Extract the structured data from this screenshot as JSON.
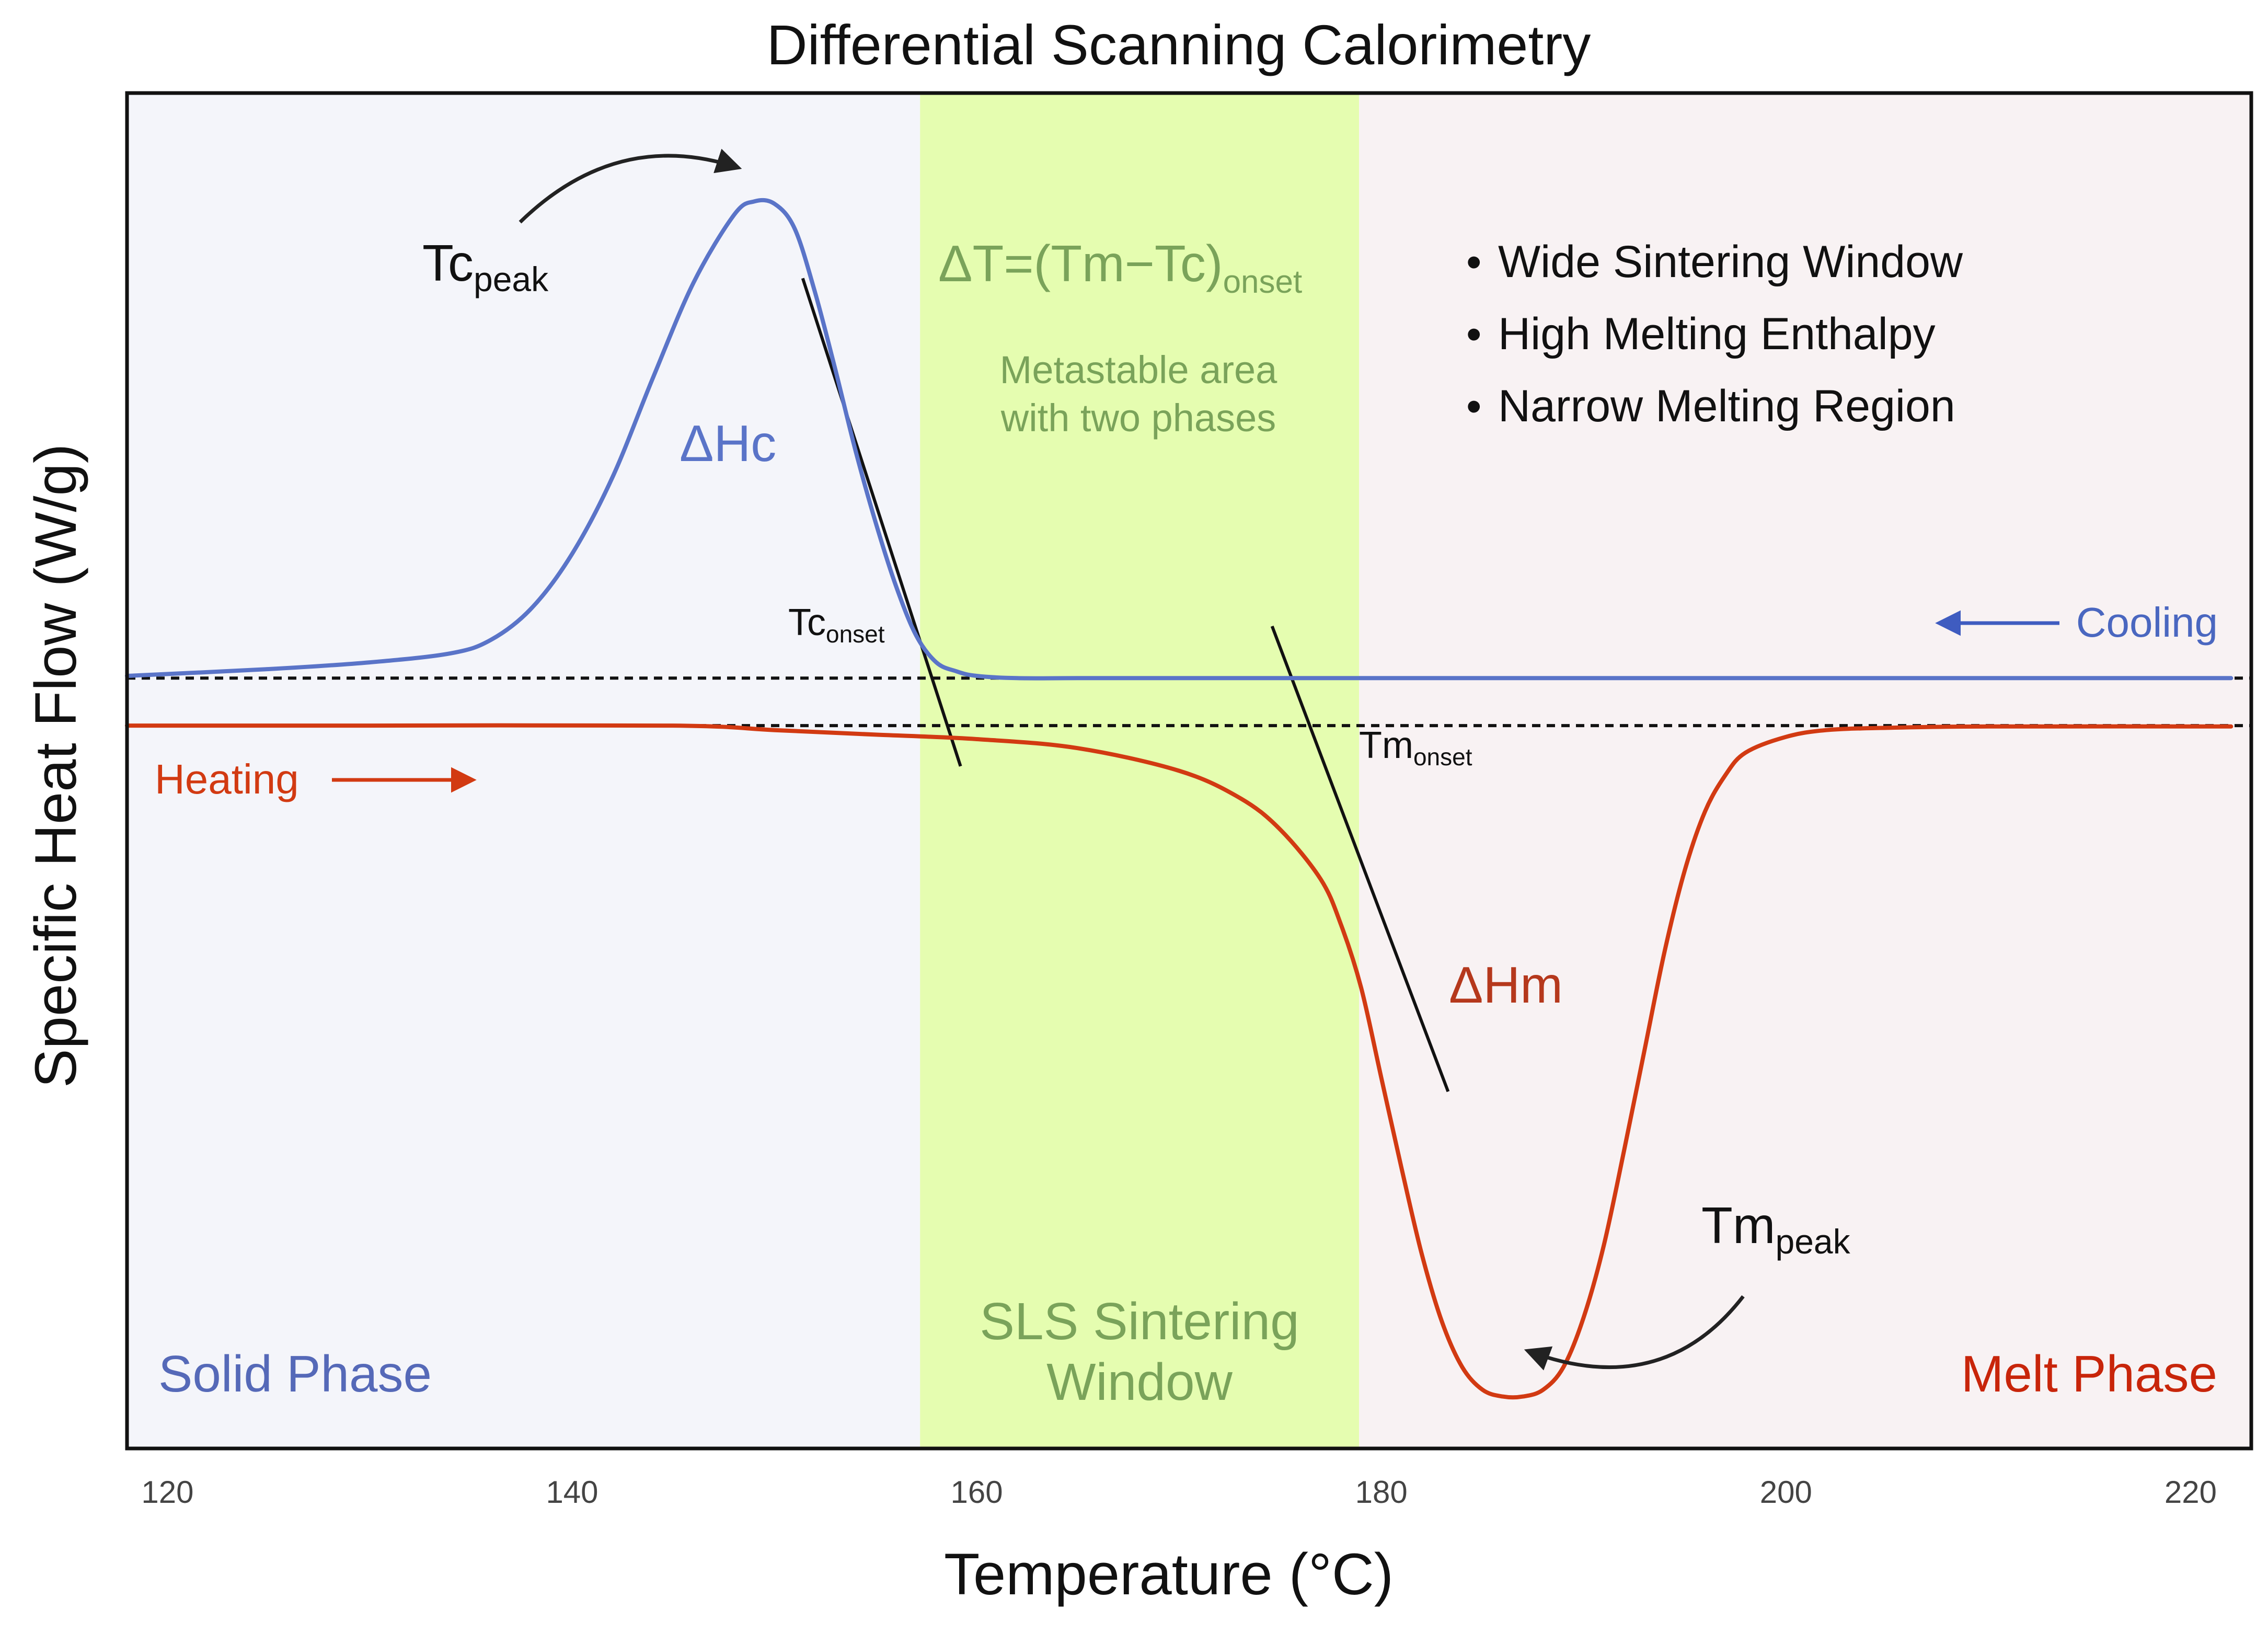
{
  "chart_data": {
    "type": "line",
    "title": "Differential Scanning Calorimetry",
    "xlabel": "Temperature (°C)",
    "ylabel": "Specific Heat Flow (W/g)",
    "xlim": [
      118,
      223
    ],
    "ylim": [
      -17,
      13
    ],
    "x_ticks": [
      120,
      140,
      160,
      180,
      200,
      220
    ],
    "y_ticks_shown": false,
    "grid": false,
    "regions": [
      {
        "name": "solid",
        "label": "Solid Phase",
        "x_start": 118,
        "x_end": 157.2,
        "color": "#f4f5fa",
        "label_color": "#5569b8"
      },
      {
        "name": "sinter",
        "label_line1": "SLS Sintering",
        "label_line2": "Window",
        "x_start": 157.2,
        "x_end": 178.9,
        "color": "#e5fdb0",
        "label_color": "#7aa35a"
      },
      {
        "name": "melt",
        "label": "Melt Phase",
        "x_start": 178.9,
        "x_end": 223,
        "color": "#f8f2f3",
        "label_color": "#c8250a"
      }
    ],
    "baselines": [
      {
        "name": "cooling-baseline",
        "y": 0.05
      },
      {
        "name": "heating-baseline",
        "y": -1.0
      }
    ],
    "series": [
      {
        "name": "Cooling",
        "color": "#5a74c8",
        "direction": "left",
        "x": [
          118,
          125,
          130,
          134,
          136,
          138,
          140,
          142,
          144,
          146,
          148,
          149,
          150,
          151,
          152,
          153,
          154,
          155,
          156,
          157,
          158,
          159,
          160,
          162,
          165,
          170,
          180,
          190,
          200,
          210,
          222
        ],
        "y": [
          0.1,
          0.25,
          0.4,
          0.6,
          0.9,
          1.6,
          2.8,
          4.5,
          6.7,
          8.8,
          10.3,
          10.6,
          10.55,
          10.0,
          8.6,
          6.9,
          5.1,
          3.5,
          2.1,
          1.0,
          0.4,
          0.2,
          0.1,
          0.05,
          0.05,
          0.05,
          0.05,
          0.05,
          0.05,
          0.05,
          0.05
        ]
      },
      {
        "name": "Heating",
        "color": "#d23a12",
        "direction": "right",
        "x": [
          118,
          130,
          145,
          150,
          155,
          160,
          165,
          170,
          173,
          175,
          177,
          178,
          179,
          180,
          181,
          182,
          183,
          184,
          185,
          186,
          187,
          188,
          189,
          190,
          191,
          192,
          193,
          194,
          195,
          196,
          197,
          198,
          200,
          202,
          205,
          210,
          222
        ],
        "y": [
          -1.0,
          -1.0,
          -1.0,
          -1.1,
          -1.2,
          -1.3,
          -1.5,
          -2.0,
          -2.6,
          -3.3,
          -4.4,
          -5.4,
          -6.8,
          -8.8,
          -10.8,
          -12.7,
          -14.2,
          -15.2,
          -15.7,
          -15.85,
          -15.85,
          -15.7,
          -15.2,
          -14.1,
          -12.5,
          -10.4,
          -8.2,
          -6.0,
          -4.2,
          -2.9,
          -2.1,
          -1.6,
          -1.25,
          -1.1,
          -1.05,
          -1.02,
          -1.02
        ]
      }
    ],
    "tangents": [
      {
        "name": "tc-onset-tangent",
        "x": [
          151.4,
          159.2
        ],
        "y": [
          8.9,
          -1.9
        ]
      },
      {
        "name": "tm-onset-tangent",
        "x": [
          174.6,
          183.3
        ],
        "y": [
          1.2,
          -9.1
        ]
      }
    ],
    "annotations": {
      "tc_peak_main": "Tc",
      "tc_peak_sub": "peak",
      "tc_onset_main": "Tc",
      "tc_onset_sub": "onset",
      "tm_onset_main": "Tm",
      "tm_onset_sub": "onset",
      "tm_peak_main": "Tm",
      "tm_peak_sub": "peak",
      "delta_hc": "ΔHc",
      "delta_hm": "ΔHm",
      "delta_t_main": "ΔT=(Tm−Tc)",
      "delta_t_sub": "onset",
      "metastable_line1": "Metastable area",
      "metastable_line2": "with two phases",
      "cooling_label": "Cooling",
      "heating_label": "Heating",
      "bullet_symbol": "•",
      "bullets": [
        "Wide Sintering Window",
        "High Melting Enthalpy",
        "Narrow Melting Region"
      ]
    }
  },
  "colors": {
    "frame": "#111111",
    "text": "#111111",
    "tick_text": "#444444",
    "cooling": "#5a74c8",
    "heating": "#d23a12",
    "delta_hm": "#b5381c",
    "tangent": "#111111"
  }
}
